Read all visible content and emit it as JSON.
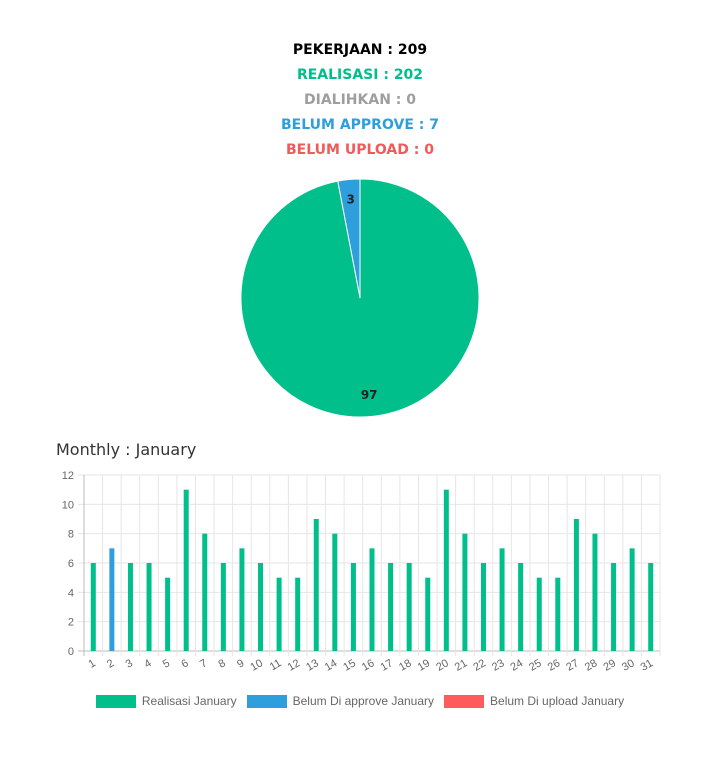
{
  "summary": {
    "pekerjaan": {
      "text": "PEKERJAAN : 209",
      "color": "#000000"
    },
    "realisasi": {
      "text": "REALISASI : 202",
      "color": "#00bf8a"
    },
    "dialihkan": {
      "text": "DIALIHKAN : 0",
      "color": "#9e9e9e"
    },
    "belum_approve": {
      "text": "BELUM APPROVE : 7",
      "color": "#2e9fdc"
    },
    "belum_upload": {
      "text": "BELUM UPLOAD : 0",
      "color": "#f05a5a"
    }
  },
  "chart_data": [
    {
      "type": "pie",
      "slices": [
        {
          "label": "97",
          "value": 97,
          "color": "#00bf8a"
        },
        {
          "label": "3",
          "value": 3,
          "color": "#2e9fdc"
        }
      ]
    },
    {
      "type": "bar",
      "title": "Monthly : January",
      "categories": [
        "1",
        "2",
        "3",
        "4",
        "5",
        "6",
        "7",
        "8",
        "9",
        "10",
        "11",
        "12",
        "13",
        "14",
        "15",
        "16",
        "17",
        "18",
        "19",
        "20",
        "21",
        "22",
        "23",
        "24",
        "25",
        "26",
        "27",
        "28",
        "29",
        "30",
        "31"
      ],
      "series": [
        {
          "name": "Realisasi January",
          "color": "#00bf8a",
          "values": [
            6,
            0,
            6,
            6,
            5,
            11,
            8,
            6,
            7,
            6,
            5,
            5,
            9,
            8,
            6,
            7,
            6,
            6,
            5,
            11,
            8,
            6,
            7,
            6,
            5,
            5,
            9,
            8,
            6,
            7,
            6
          ]
        },
        {
          "name": "Belum Di approve January",
          "color": "#2e9fdc",
          "values": [
            0,
            7,
            0,
            0,
            0,
            0,
            0,
            0,
            0,
            0,
            0,
            0,
            0,
            0,
            0,
            0,
            0,
            0,
            0,
            0,
            0,
            0,
            0,
            0,
            0,
            0,
            0,
            0,
            0,
            0,
            0
          ]
        },
        {
          "name": "Belum Di upload January",
          "color": "#ff5b5b",
          "values": [
            0,
            0,
            0,
            0,
            0,
            0,
            0,
            0,
            0,
            0,
            0,
            0,
            0,
            0,
            0,
            0,
            0,
            0,
            0,
            0,
            0,
            0,
            0,
            0,
            0,
            0,
            0,
            0,
            0,
            0,
            0
          ]
        }
      ],
      "yticks": [
        0,
        2,
        4,
        6,
        8,
        10,
        12
      ],
      "ylim": [
        0,
        12
      ],
      "grid": true,
      "legend": "bottom"
    }
  ]
}
